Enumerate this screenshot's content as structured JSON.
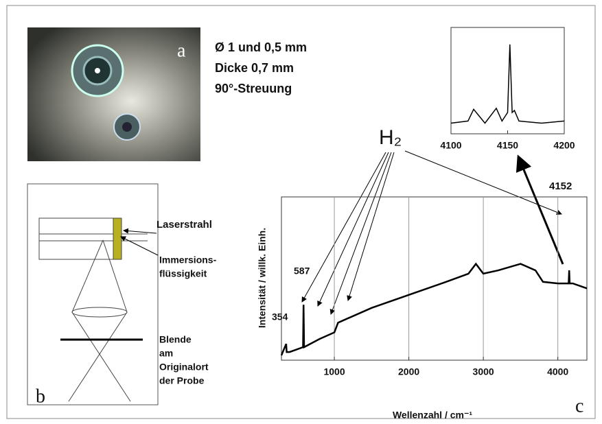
{
  "panel_a": {
    "label": "a",
    "lines": [
      "Ø 1 und 0,5 mm",
      "Dicke 0,7 mm",
      "90°-Streuung"
    ]
  },
  "panel_b": {
    "label": "b",
    "laser": "Laserstrahl",
    "immersion": [
      "Immersions-",
      "flüssigkeit"
    ],
    "aperture": [
      "Blende",
      "am",
      "Originalort",
      "der Probe"
    ]
  },
  "panel_c": {
    "label": "c",
    "molecule": "H₂",
    "annotations": [
      "587",
      "354",
      "4152"
    ]
  },
  "chart_data": [
    {
      "type": "line",
      "x_label": "Wellenzahl / cm⁻¹",
      "y_label": "Intensität / willk. Einh.",
      "color": "#000000",
      "x": [
        290,
        354,
        360,
        400,
        580,
        587,
        594,
        800,
        1000,
        1050,
        1500,
        2000,
        2500,
        2800,
        2900,
        3000,
        3200,
        3500,
        3700,
        3800,
        4000,
        4145,
        4152,
        4159,
        4200,
        4390
      ],
      "values": [
        3,
        10,
        5,
        5,
        8,
        34,
        8,
        13,
        17,
        23,
        32,
        40,
        48,
        53,
        59,
        53,
        55,
        59,
        55,
        48,
        47,
        47,
        55,
        47,
        47,
        44
      ],
      "xlim": [
        290,
        4390
      ],
      "ylim": [
        0,
        100
      ],
      "xticks": [
        1000,
        2000,
        3000,
        4000
      ],
      "grid": true
    },
    {
      "type": "line",
      "color": "#000000",
      "x": [
        4100,
        4115,
        4120,
        4130,
        4140,
        4145,
        4150,
        4152,
        4154,
        4156,
        4160,
        4180,
        4200
      ],
      "values": [
        10,
        12,
        23,
        10,
        24,
        12,
        20,
        84,
        20,
        22,
        12,
        10,
        12
      ],
      "xlim": [
        4100,
        4200
      ],
      "ylim": [
        0,
        100
      ],
      "xticks": [
        4100,
        4150,
        4200
      ],
      "grid": false
    }
  ]
}
